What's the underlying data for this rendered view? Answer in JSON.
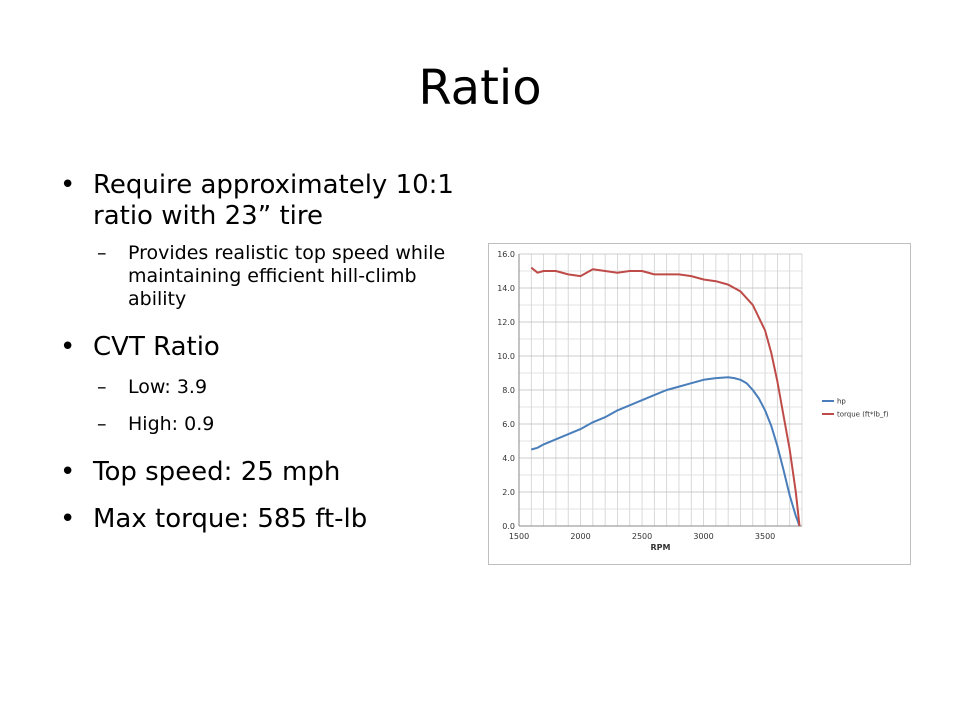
{
  "slide": {
    "title": "Ratio",
    "bullets": [
      {
        "text": "Require approximately 10:1 ratio with 23” tire",
        "sub": [
          "Provides realistic top speed while maintaining efficient hill-climb ability"
        ]
      },
      {
        "text": "CVT Ratio",
        "sub": [
          "Low: 3.9",
          "High: 0.9"
        ]
      },
      {
        "text": "Top speed: 25 mph",
        "sub": []
      },
      {
        "text": "Max torque: 585 ft-lb",
        "sub": []
      }
    ]
  },
  "chart_data": {
    "type": "line",
    "xlabel": "RPM",
    "ylabel": "",
    "xlim": [
      1500,
      3800
    ],
    "ylim": [
      0,
      16
    ],
    "xticks": [
      "1500",
      "2000",
      "2500",
      "3000",
      "3500"
    ],
    "yticks": [
      "0.0",
      "2.0",
      "4.0",
      "6.0",
      "8.0",
      "10.0",
      "12.0",
      "14.0",
      "16.0"
    ],
    "grid": true,
    "legend_position": "right",
    "series": [
      {
        "name": "hp",
        "color": "#4a7ebb",
        "x": [
          1600,
          1650,
          1700,
          1800,
          1900,
          2000,
          2100,
          2200,
          2300,
          2400,
          2500,
          2600,
          2700,
          2800,
          2900,
          3000,
          3100,
          3200,
          3250,
          3300,
          3350,
          3400,
          3450,
          3500,
          3550,
          3600,
          3650,
          3700,
          3750,
          3780
        ],
        "y": [
          4.5,
          4.6,
          4.8,
          5.1,
          5.4,
          5.7,
          6.1,
          6.4,
          6.8,
          7.1,
          7.4,
          7.7,
          8.0,
          8.2,
          8.4,
          8.6,
          8.7,
          8.75,
          8.7,
          8.6,
          8.4,
          8.0,
          7.5,
          6.8,
          5.9,
          4.7,
          3.3,
          1.8,
          0.6,
          0.0
        ]
      },
      {
        "name": "torque (ft*lb_f)",
        "color": "#be4b48",
        "x": [
          1600,
          1650,
          1700,
          1800,
          1900,
          2000,
          2100,
          2200,
          2300,
          2400,
          2500,
          2600,
          2700,
          2800,
          2900,
          3000,
          3100,
          3200,
          3300,
          3400,
          3500,
          3550,
          3600,
          3650,
          3700,
          3750,
          3780
        ],
        "y": [
          15.2,
          14.9,
          15.0,
          15.0,
          14.8,
          14.7,
          15.1,
          15.0,
          14.9,
          15.0,
          15.0,
          14.8,
          14.8,
          14.8,
          14.7,
          14.5,
          14.4,
          14.2,
          13.8,
          13.0,
          11.5,
          10.2,
          8.5,
          6.5,
          4.5,
          2.0,
          0.0
        ]
      }
    ]
  }
}
